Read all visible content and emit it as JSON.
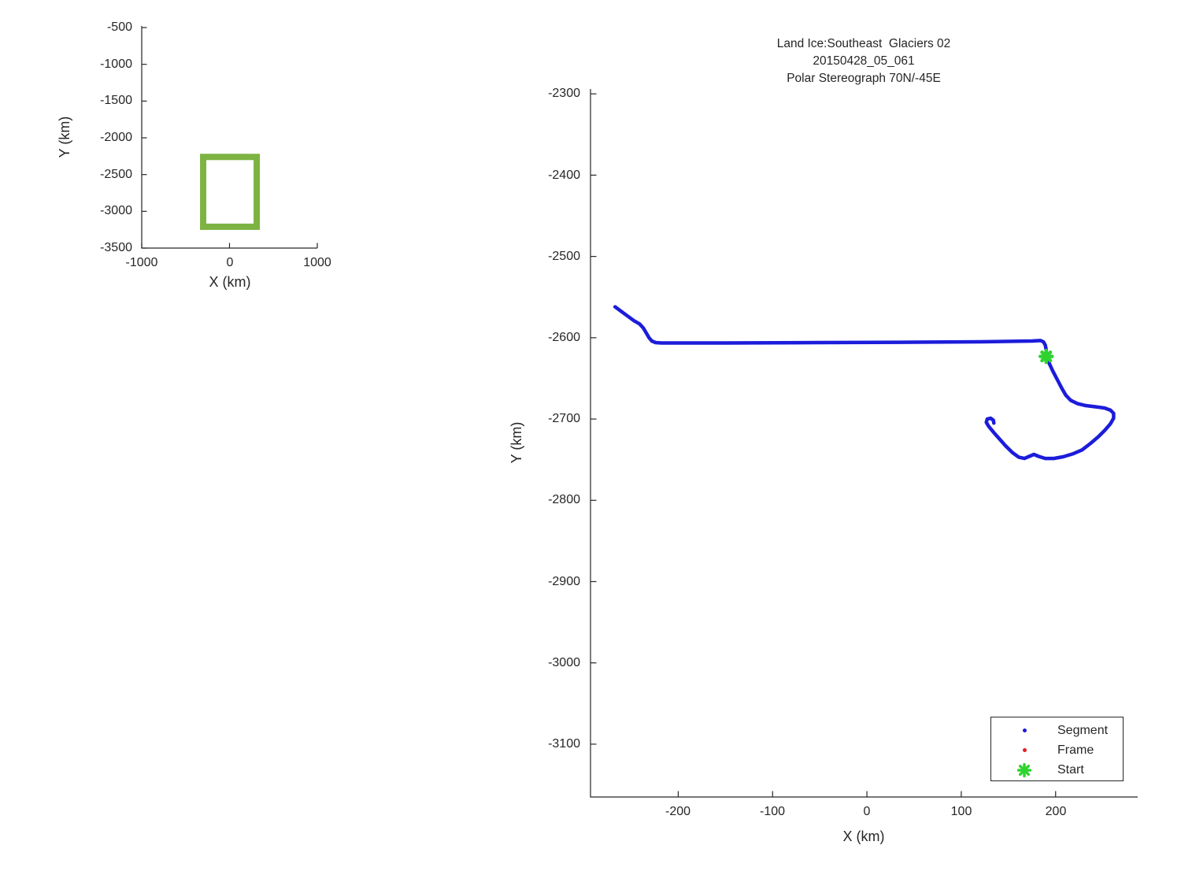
{
  "window": {
    "background": "#ffffff",
    "text_color": "#262626",
    "axis_color": "#262626"
  },
  "legend": {
    "position": "bottom-right",
    "border_color": "#262626"
  },
  "chart_data": [
    {
      "id": "overview-locator",
      "type": "line",
      "xlabel": "X (km)",
      "ylabel": "Y (km)",
      "xlim": [
        -1000,
        1000
      ],
      "ylim": [
        -3500,
        -500
      ],
      "x_tick_labels": [
        "-1000",
        "0",
        "1000"
      ],
      "y_tick_labels": [
        "-500",
        "-1000",
        "-1500",
        "-2000",
        "-2500",
        "-3000",
        "-3500"
      ],
      "grid": false,
      "region_color": "#7db342",
      "region_box": {
        "x_min": -300,
        "x_max": 310,
        "y_min": -3210,
        "y_max": -2260
      }
    },
    {
      "id": "track-detail",
      "type": "line",
      "title": "Land Ice:Southeast  Glaciers 02",
      "subtitle1": "20150428_05_061",
      "subtitle2": "Polar Stereograph 70N/-45E",
      "xlabel": "X (km)",
      "ylabel": "Y (km)",
      "xlim": [
        -293,
        287
      ],
      "ylim": [
        -3165,
        -2294
      ],
      "x_tick_labels": [
        "-200",
        "-100",
        "0",
        "100",
        "200"
      ],
      "y_tick_labels": [
        "-2300",
        "-2400",
        "-2500",
        "-2600",
        "-2700",
        "-2800",
        "-2900",
        "-3000",
        "-3100"
      ],
      "grid": false,
      "legend_position": "bottom-right",
      "series": [
        {
          "name": "Segment",
          "color": "#1c1cdb",
          "marker": "dot",
          "points": [
            [
              -267,
              -2562
            ],
            [
              -261,
              -2567
            ],
            [
              -254,
              -2573
            ],
            [
              -247,
              -2579
            ],
            [
              -241,
              -2583
            ],
            [
              -237,
              -2588
            ],
            [
              -234,
              -2594
            ],
            [
              -231,
              -2600
            ],
            [
              -228,
              -2604
            ],
            [
              -224,
              -2606
            ],
            [
              -218,
              -2606.5
            ],
            [
              -150,
              -2606.5
            ],
            [
              -50,
              -2606
            ],
            [
              50,
              -2605.5
            ],
            [
              120,
              -2605
            ],
            [
              175,
              -2604
            ],
            [
              184,
              -2603.5
            ],
            [
              187,
              -2605
            ],
            [
              189,
              -2609
            ],
            [
              190,
              -2615
            ],
            [
              190,
              -2623
            ],
            [
              193,
              -2631
            ],
            [
              197,
              -2641
            ],
            [
              202,
              -2652
            ],
            [
              207,
              -2663
            ],
            [
              211,
              -2671
            ],
            [
              216,
              -2677
            ],
            [
              223,
              -2681
            ],
            [
              232,
              -2683.5
            ],
            [
              243,
              -2685
            ],
            [
              252,
              -2686.5
            ],
            [
              258,
              -2689
            ],
            [
              261.5,
              -2693
            ],
            [
              261.5,
              -2699
            ],
            [
              258,
              -2706
            ],
            [
              252,
              -2714
            ],
            [
              245,
              -2722
            ],
            [
              237,
              -2730
            ],
            [
              228,
              -2738
            ],
            [
              218,
              -2743
            ],
            [
              208,
              -2746.5
            ],
            [
              198,
              -2748.5
            ],
            [
              189,
              -2748.5
            ],
            [
              182,
              -2746
            ],
            [
              177,
              -2743.5
            ],
            [
              172,
              -2746
            ],
            [
              167,
              -2748.5
            ],
            [
              161,
              -2747
            ],
            [
              154,
              -2741
            ],
            [
              147,
              -2733
            ],
            [
              140,
              -2724
            ],
            [
              134,
              -2716
            ],
            [
              129,
              -2709
            ],
            [
              126.5,
              -2704
            ],
            [
              127.5,
              -2700
            ],
            [
              131,
              -2699
            ],
            [
              134,
              -2701.5
            ],
            [
              134.5,
              -2705
            ]
          ]
        },
        {
          "name": "Frame",
          "color": "#e02020",
          "marker": "dot",
          "points": []
        },
        {
          "name": "Start",
          "color": "#2fd32f",
          "marker": "star",
          "points": [
            [
              190,
              -2623
            ]
          ]
        }
      ]
    }
  ]
}
